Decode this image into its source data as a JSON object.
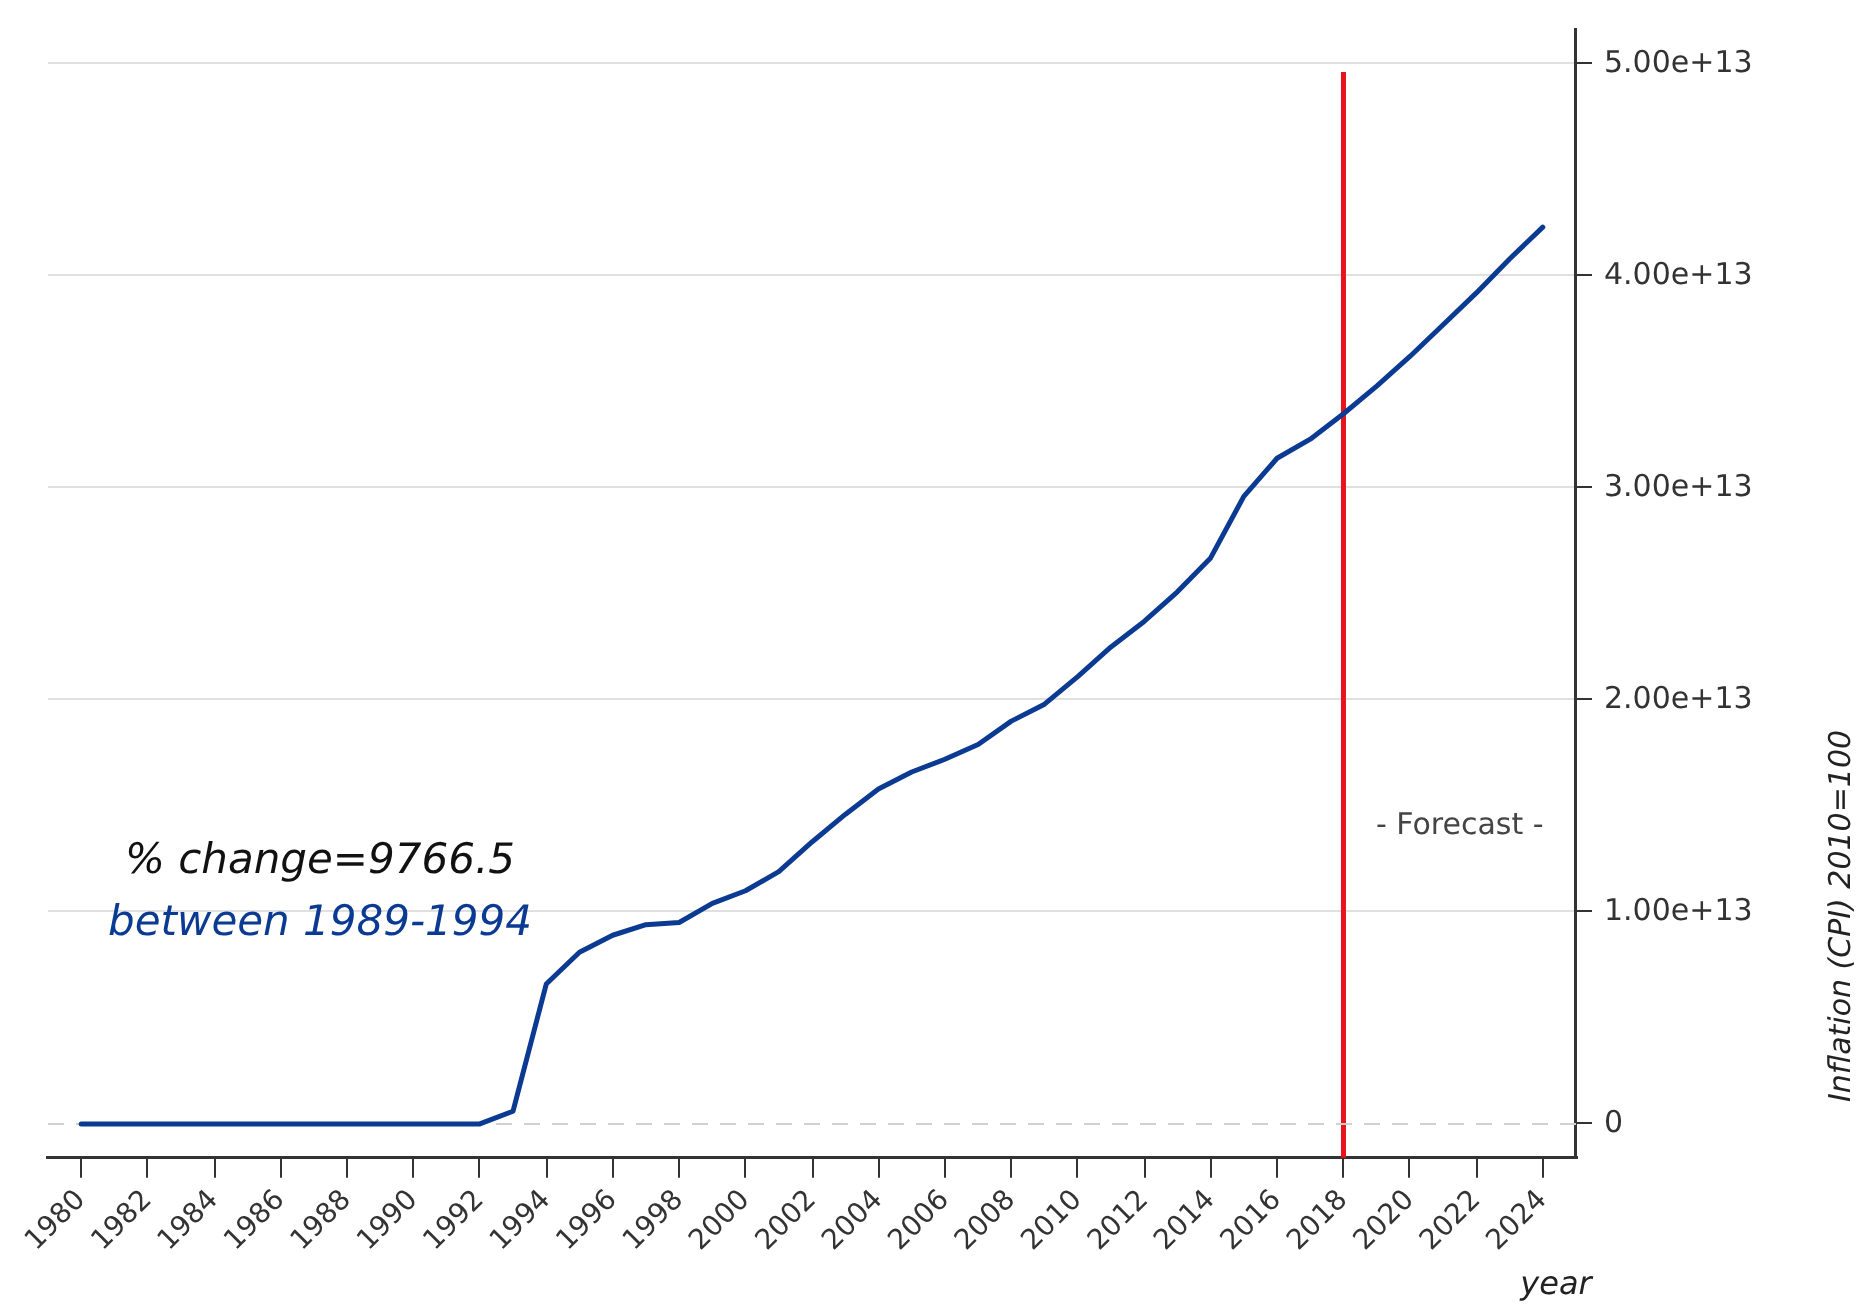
{
  "chart_data": {
    "type": "line",
    "xlabel": "year",
    "ylabel": "Inflation (CPI) 2010=100",
    "x": [
      1980,
      1981,
      1982,
      1983,
      1984,
      1985,
      1986,
      1987,
      1988,
      1989,
      1990,
      1991,
      1992,
      1993,
      1994,
      1995,
      1996,
      1997,
      1998,
      1999,
      2000,
      2001,
      2002,
      2003,
      2004,
      2005,
      2006,
      2007,
      2008,
      2009,
      2010,
      2011,
      2012,
      2013,
      2014,
      2015,
      2016,
      2017,
      2018,
      2019,
      2020,
      2021,
      2022,
      2023,
      2024
    ],
    "series": [
      {
        "color": "#0a3a91",
        "values": [
          0,
          0,
          0,
          0,
          0,
          0,
          0,
          0,
          0,
          0,
          0,
          0,
          0,
          600000000000.0,
          6600000000000.0,
          8100000000000.0,
          8900000000000.0,
          9400000000000.0,
          9500000000000.0,
          10400000000000.0,
          11000000000000.0,
          11900000000000.0,
          13300000000000.0,
          14600000000000.0,
          15800000000000.0,
          16600000000000.0,
          17200000000000.0,
          17900000000000.0,
          19000000000000.0,
          19800000000000.0,
          21100000000000.0,
          22500000000000.0,
          23700000000000.0,
          25100000000000.0,
          26700000000000.0,
          29600000000000.0,
          31400000000000.0,
          32300000000000.0,
          33500000000000.0,
          34800000000000.0,
          36200000000000.0,
          37700000000000.0,
          39200000000000.0,
          40800000000000.0,
          42300000000000.0
        ]
      }
    ],
    "xlim": [
      1979,
      2025
    ],
    "xticks": [
      1980,
      1982,
      1984,
      1986,
      1988,
      1990,
      1992,
      1994,
      1996,
      1998,
      2000,
      2002,
      2004,
      2006,
      2008,
      2010,
      2012,
      2014,
      2016,
      2018,
      2020,
      2022,
      2024
    ],
    "ylim": [
      -1600000000000.0,
      51600000000000.0
    ],
    "yticks": [
      0,
      {
        "value": 10000000000000.0,
        "label": "1.00e+13"
      },
      {
        "value": 20000000000000.0,
        "label": "2.00e+13"
      },
      {
        "value": 30000000000000.0,
        "label": "3.00e+13"
      },
      {
        "value": 40000000000000.0,
        "label": "4.00e+13"
      },
      {
        "value": 50000000000000.0,
        "label": "5.00e+13"
      }
    ],
    "ref_lines": [
      {
        "axis": "x",
        "value": 2018,
        "label": "- Forecast -",
        "color": "#e8141c",
        "line_style": "solid"
      },
      {
        "axis": "y",
        "value": 0,
        "label": null,
        "color": "#d0d0d0",
        "line_style": "dashed"
      }
    ],
    "annotations": [
      "% change=9766.5",
      "between 1989-1994"
    ],
    "grid": "y",
    "legend": false,
    "marker": "none",
    "line_style": "solid"
  }
}
